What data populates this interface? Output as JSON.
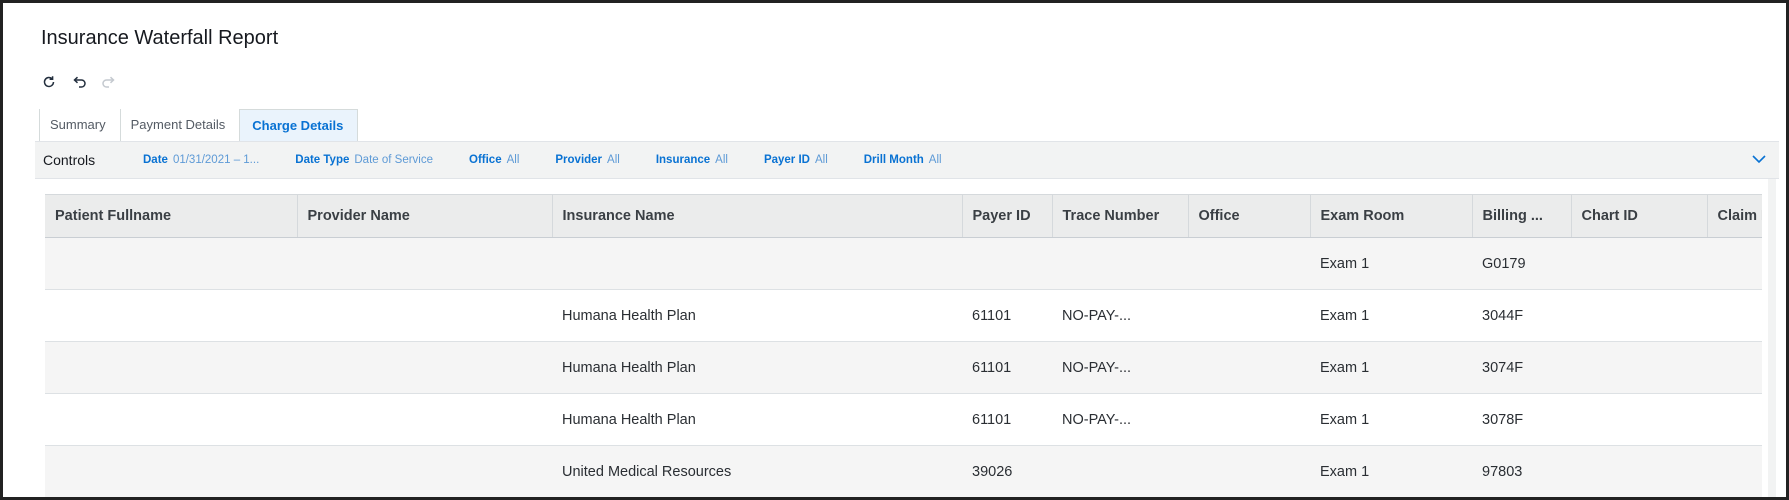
{
  "report": {
    "title": "Insurance Waterfall Report"
  },
  "toolbar": {
    "refresh_icon": "refresh-icon",
    "undo_icon": "undo-icon",
    "redo_icon": "redo-icon"
  },
  "tabs": [
    {
      "label": "Summary",
      "active": false
    },
    {
      "label": "Payment Details",
      "active": false
    },
    {
      "label": "Charge Details",
      "active": true
    }
  ],
  "controls": {
    "label": "Controls",
    "filters": [
      {
        "name": "Date",
        "value": "01/31/2021 – 1..."
      },
      {
        "name": "Date Type",
        "value": "Date of Service"
      },
      {
        "name": "Office",
        "value": "All"
      },
      {
        "name": "Provider",
        "value": "All"
      },
      {
        "name": "Insurance",
        "value": "All"
      },
      {
        "name": "Payer ID",
        "value": "All"
      },
      {
        "name": "Drill Month",
        "value": "All"
      }
    ]
  },
  "table": {
    "columns": [
      "Patient Fullname",
      "Provider Name",
      "Insurance Name",
      "Payer ID",
      "Trace Number",
      "Office",
      "Exam Room",
      "Billing ...",
      "Chart ID",
      "Claim I"
    ],
    "rows": [
      [
        "",
        "",
        "",
        "",
        "",
        "",
        "Exam 1",
        "G0179",
        "",
        ""
      ],
      [
        "",
        "",
        "Humana Health Plan",
        "61101",
        "NO-PAY-...",
        "",
        "Exam 1",
        "3044F",
        "",
        ""
      ],
      [
        "",
        "",
        "Humana Health Plan",
        "61101",
        "NO-PAY-...",
        "",
        "Exam 1",
        "3074F",
        "",
        ""
      ],
      [
        "",
        "",
        "Humana Health Plan",
        "61101",
        "NO-PAY-...",
        "",
        "Exam 1",
        "3078F",
        "",
        ""
      ],
      [
        "",
        "",
        "United Medical Resources",
        "39026",
        "",
        "",
        "Exam 1",
        "97803",
        "",
        ""
      ]
    ]
  },
  "colors": {
    "accent": "#0972d3",
    "header_bg": "#ebecec",
    "controls_bg": "#f2f3f3"
  }
}
